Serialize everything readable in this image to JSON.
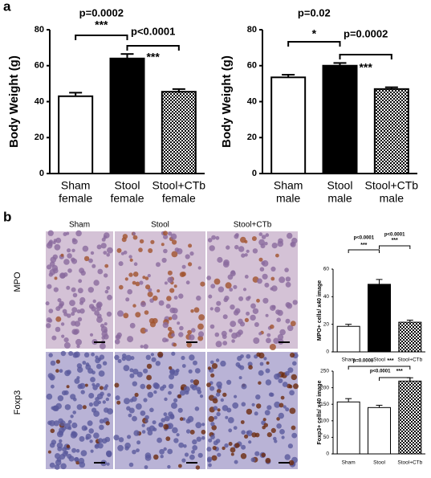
{
  "panel_labels": [
    "a",
    "b"
  ],
  "image_columns": [
    "Sham",
    "Stool",
    "Stool+CTb"
  ],
  "image_rows": [
    "MPO",
    "Foxp3"
  ],
  "chart_data": [
    {
      "type": "bar",
      "ylabel": "Body Weight (g)",
      "categories": [
        [
          "Sham",
          "female"
        ],
        [
          "Stool",
          "female"
        ],
        [
          "Stool+CTb",
          "female"
        ]
      ],
      "values": [
        43,
        64,
        45.5
      ],
      "errors": [
        2,
        2.5,
        1.5
      ],
      "fills": [
        "white",
        "black",
        "checker"
      ],
      "ylim": [
        0,
        80
      ],
      "yticks": [
        0,
        20,
        40,
        60,
        80
      ],
      "brackets": [
        {
          "pair": [
            0,
            1
          ],
          "p": "p=0.0002",
          "stars": "***"
        },
        {
          "pair": [
            1,
            2
          ],
          "p": "p<0.0001",
          "stars": "***"
        }
      ]
    },
    {
      "type": "bar",
      "ylabel": "Body Weight (g)",
      "categories": [
        [
          "Sham",
          "male"
        ],
        [
          "Stool",
          "male"
        ],
        [
          "Stool+CTb",
          "male"
        ]
      ],
      "values": [
        53.5,
        60,
        47
      ],
      "errors": [
        1.5,
        1.5,
        1
      ],
      "fills": [
        "white",
        "black",
        "checker"
      ],
      "ylim": [
        0,
        80
      ],
      "yticks": [
        0,
        20,
        40,
        60,
        80
      ],
      "brackets": [
        {
          "pair": [
            0,
            1
          ],
          "p": "p=0.02",
          "stars": "*"
        },
        {
          "pair": [
            1,
            2
          ],
          "p": "p=0.0002",
          "stars": "***"
        }
      ]
    },
    {
      "type": "bar",
      "ylabel": "MPO+ cells/ x40 image",
      "categories": [
        [
          "Sham"
        ],
        [
          "Stool"
        ],
        [
          "Stool+CTb"
        ]
      ],
      "values": [
        18.5,
        49,
        21.5
      ],
      "errors": [
        1.5,
        3.5,
        1.5
      ],
      "fills": [
        "white",
        "black",
        "checker"
      ],
      "ylim": [
        0,
        60
      ],
      "yticks": [
        0,
        20,
        40,
        60
      ],
      "brackets": [
        {
          "pair": [
            0,
            1
          ],
          "p": "p<0.0001",
          "stars": "***"
        },
        {
          "pair": [
            1,
            2
          ],
          "p": "p<0.0001",
          "stars": "***"
        }
      ]
    },
    {
      "type": "bar",
      "ylabel": "Foxp3+ cells/ x40 image",
      "categories": [
        [
          "Sham"
        ],
        [
          "Stool"
        ],
        [
          "Stool+CTb"
        ]
      ],
      "values": [
        157,
        140,
        220
      ],
      "errors": [
        10,
        7,
        10
      ],
      "fills": [
        "white",
        "white",
        "checker"
      ],
      "ylim": [
        0,
        250
      ],
      "yticks": [
        0,
        50,
        100,
        150,
        200,
        250
      ],
      "brackets": [
        {
          "pair": [
            0,
            2
          ],
          "p": "p=0.0008",
          "stars": "***"
        },
        {
          "pair": [
            1,
            2
          ],
          "p": "p<0.0001",
          "stars": "***"
        }
      ]
    }
  ]
}
